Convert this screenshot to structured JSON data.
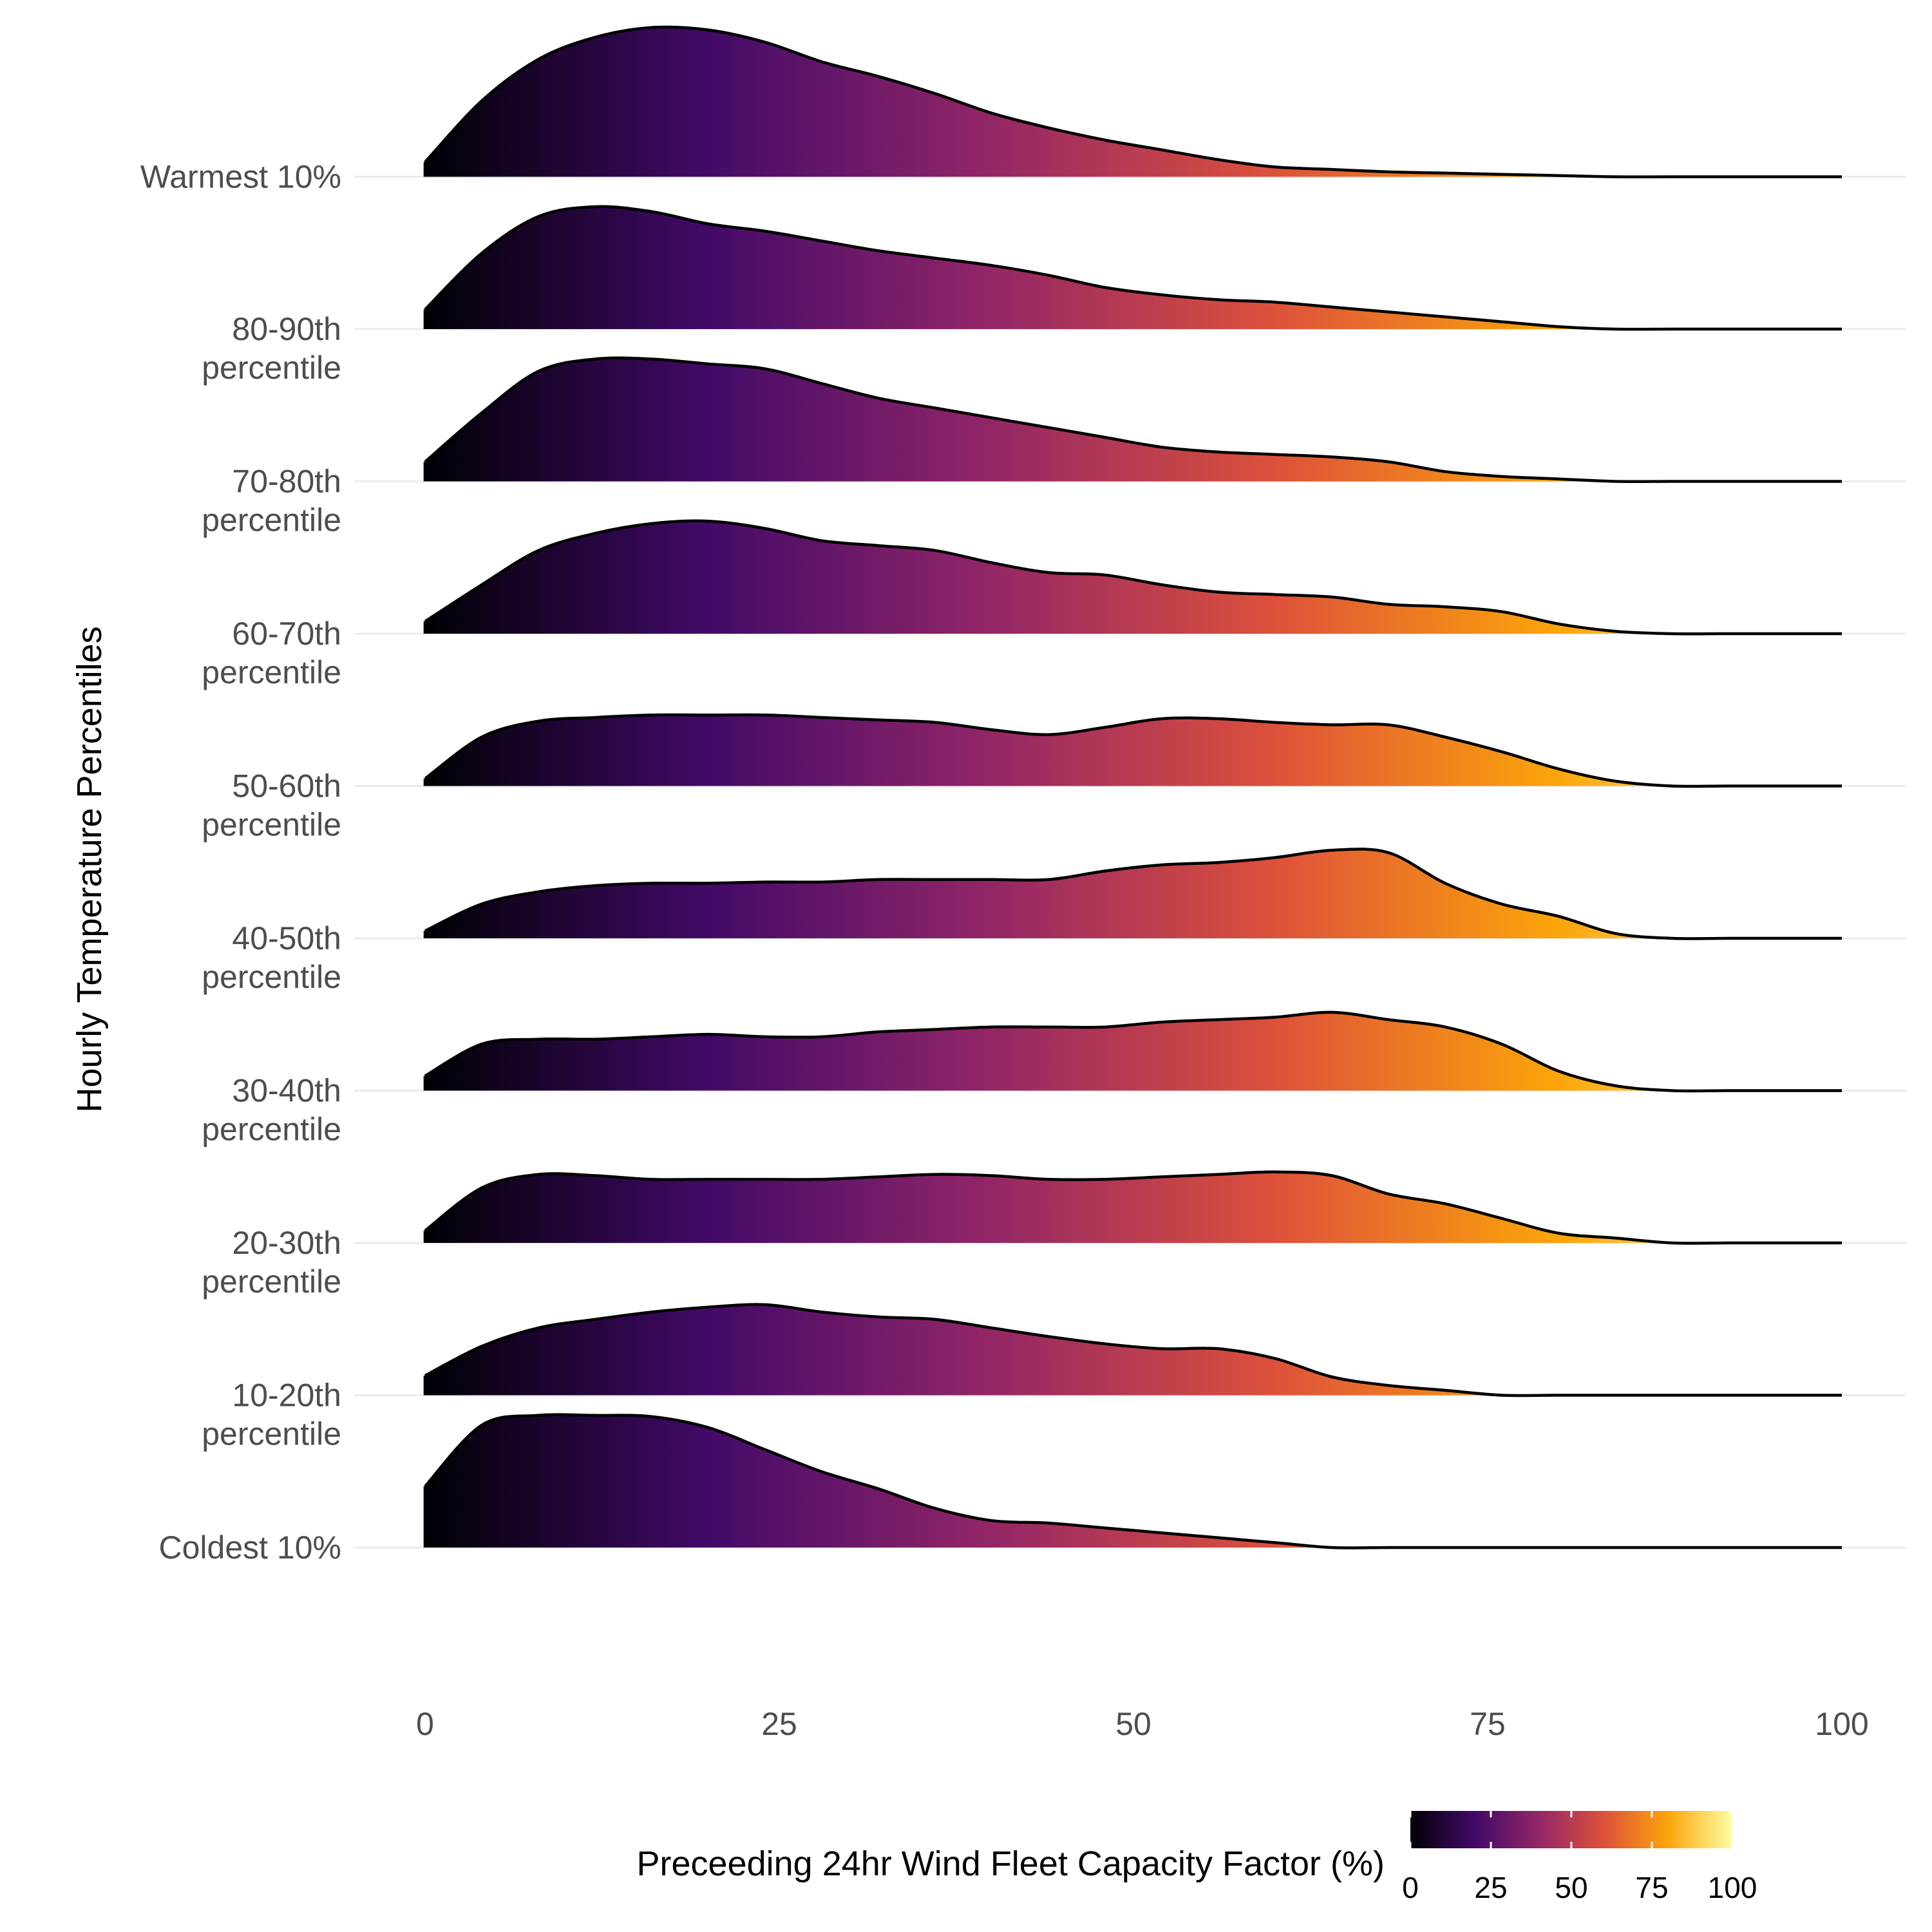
{
  "chart_data": {
    "type": "ridgeline",
    "title": "",
    "xlabel": "",
    "ylabel": "Hourly Temperature Percentiles",
    "xlim": [
      0,
      100
    ],
    "x_ticks": [
      "0",
      "25",
      "50",
      "75",
      "100"
    ],
    "x_tick_values": [
      0,
      25,
      50,
      75,
      100
    ],
    "fill": "x-value gradient, inferno palette",
    "gradient_stops": [
      "#000004",
      "#420A68",
      "#932667",
      "#DD513A",
      "#FCA50A",
      "#FCFFA4"
    ],
    "legend": {
      "title": "Preceeding 24hr Wind Fleet Capacity Factor (%)",
      "ticks": [
        "0",
        "25",
        "50",
        "75",
        "100"
      ],
      "placement": "bottom"
    },
    "x": [
      0,
      4,
      8,
      12,
      16,
      20,
      24,
      28,
      32,
      36,
      40,
      44,
      48,
      52,
      56,
      60,
      64,
      68,
      72,
      76,
      80,
      84,
      88,
      92,
      96,
      100
    ],
    "series": [
      {
        "label_lines": [
          "Coldest 10%"
        ],
        "density": [
          0.5,
          1.0,
          1.08,
          1.08,
          1.07,
          0.98,
          0.8,
          0.62,
          0.48,
          0.32,
          0.22,
          0.2,
          0.16,
          0.12,
          0.08,
          0.04,
          0.0,
          0.0,
          0.0,
          0.0,
          0.0,
          0.0,
          0.0,
          0.0,
          0.0,
          0.0
        ]
      },
      {
        "label_lines": [
          "10-20th",
          "percentile"
        ],
        "density": [
          0.16,
          0.4,
          0.55,
          0.62,
          0.68,
          0.72,
          0.74,
          0.68,
          0.64,
          0.62,
          0.55,
          0.48,
          0.42,
          0.38,
          0.38,
          0.3,
          0.15,
          0.08,
          0.04,
          0.0,
          0.0,
          0.0,
          0.0,
          0.0,
          0.0,
          0.0
        ]
      },
      {
        "label_lines": [
          "20-30th",
          "percentile"
        ],
        "density": [
          0.1,
          0.45,
          0.56,
          0.55,
          0.52,
          0.52,
          0.52,
          0.52,
          0.54,
          0.56,
          0.55,
          0.52,
          0.52,
          0.54,
          0.56,
          0.58,
          0.55,
          0.4,
          0.32,
          0.2,
          0.08,
          0.04,
          0.0,
          0.0,
          0.0,
          0.0
        ]
      },
      {
        "label_lines": [
          "30-40th",
          "percentile"
        ],
        "density": [
          0.12,
          0.38,
          0.42,
          0.42,
          0.44,
          0.46,
          0.44,
          0.44,
          0.48,
          0.5,
          0.52,
          0.52,
          0.52,
          0.56,
          0.58,
          0.6,
          0.64,
          0.58,
          0.52,
          0.38,
          0.16,
          0.04,
          0.0,
          0.0,
          0.0,
          0.0
        ]
      },
      {
        "label_lines": [
          "40-50th",
          "percentile"
        ],
        "density": [
          0.06,
          0.28,
          0.38,
          0.43,
          0.45,
          0.45,
          0.46,
          0.46,
          0.48,
          0.48,
          0.48,
          0.48,
          0.55,
          0.6,
          0.62,
          0.66,
          0.72,
          0.7,
          0.45,
          0.28,
          0.18,
          0.04,
          0.0,
          0.0,
          0.0,
          0.0
        ]
      },
      {
        "label_lines": [
          "50-60th",
          "percentile"
        ],
        "density": [
          0.06,
          0.4,
          0.53,
          0.56,
          0.58,
          0.58,
          0.58,
          0.56,
          0.54,
          0.52,
          0.46,
          0.42,
          0.48,
          0.55,
          0.55,
          0.52,
          0.5,
          0.5,
          0.4,
          0.28,
          0.14,
          0.04,
          0.0,
          0.0,
          0.0,
          0.0
        ]
      },
      {
        "label_lines": [
          "60-70th",
          "percentile"
        ],
        "density": [
          0.1,
          0.4,
          0.68,
          0.82,
          0.9,
          0.92,
          0.86,
          0.76,
          0.72,
          0.68,
          0.58,
          0.5,
          0.48,
          0.4,
          0.34,
          0.32,
          0.3,
          0.24,
          0.22,
          0.18,
          0.08,
          0.02,
          0.0,
          0.0,
          0.0,
          0.0
        ]
      },
      {
        "label_lines": [
          "70-80th",
          "percentile"
        ],
        "density": [
          0.16,
          0.56,
          0.9,
          1.0,
          1.0,
          0.96,
          0.92,
          0.8,
          0.68,
          0.6,
          0.52,
          0.44,
          0.36,
          0.28,
          0.24,
          0.22,
          0.2,
          0.16,
          0.08,
          0.04,
          0.02,
          0.0,
          0.0,
          0.0,
          0.0,
          0.0
        ]
      },
      {
        "label_lines": [
          "80-90th",
          "percentile"
        ],
        "density": [
          0.16,
          0.62,
          0.92,
          1.0,
          0.96,
          0.86,
          0.8,
          0.72,
          0.64,
          0.58,
          0.52,
          0.44,
          0.34,
          0.28,
          0.24,
          0.22,
          0.18,
          0.14,
          0.1,
          0.06,
          0.02,
          0.0,
          0.0,
          0.0,
          0.0,
          0.0
        ]
      },
      {
        "label_lines": [
          "Warmest 10%"
        ],
        "density": [
          0.12,
          0.62,
          0.96,
          1.14,
          1.22,
          1.2,
          1.1,
          0.94,
          0.82,
          0.68,
          0.52,
          0.4,
          0.3,
          0.22,
          0.14,
          0.08,
          0.06,
          0.04,
          0.03,
          0.02,
          0.01,
          0.0,
          0.0,
          0.0,
          0.0,
          0.0
        ]
      }
    ]
  }
}
